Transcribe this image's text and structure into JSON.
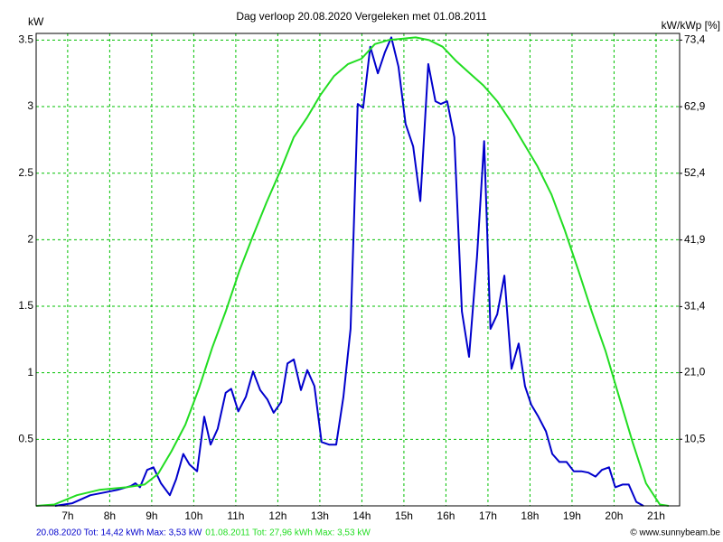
{
  "chart_data": {
    "type": "line",
    "title": "Dag  verloop 20.08.2020   Vergeleken met 01.08.2011",
    "y_label": "kW",
    "y2_label": "kW/kWp [%]",
    "credit": "© www.sunnybeam.be",
    "xlim": [
      6.25,
      21.56
    ],
    "xticks": [
      {
        "value": 7,
        "label": "7h"
      },
      {
        "value": 8,
        "label": "8h"
      },
      {
        "value": 9,
        "label": "9h"
      },
      {
        "value": 10,
        "label": "10h"
      },
      {
        "value": 11,
        "label": "11h"
      },
      {
        "value": 12,
        "label": "12h"
      },
      {
        "value": 13,
        "label": "13h"
      },
      {
        "value": 14,
        "label": "14h"
      },
      {
        "value": 15,
        "label": "15h"
      },
      {
        "value": 16,
        "label": "16h"
      },
      {
        "value": 17,
        "label": "17h"
      },
      {
        "value": 18,
        "label": "18h"
      },
      {
        "value": 19,
        "label": "19h"
      },
      {
        "value": 20,
        "label": "20h"
      },
      {
        "value": 21,
        "label": "21h"
      }
    ],
    "ylim": [
      0,
      3.55
    ],
    "yticks": [
      0.5,
      1,
      1.5,
      2,
      2.5,
      3,
      3.5
    ],
    "y2lim": [
      0,
      74.45
    ],
    "y2ticks": [
      {
        "value": 10.5,
        "label": "10,5"
      },
      {
        "value": 21.0,
        "label": "21,0"
      },
      {
        "value": 31.4,
        "label": "31,4"
      },
      {
        "value": 41.9,
        "label": "41,9"
      },
      {
        "value": 52.4,
        "label": "52,4"
      },
      {
        "value": 62.9,
        "label": "62,9"
      },
      {
        "value": 73.4,
        "label": "73,4"
      }
    ],
    "grid": true,
    "series": [
      {
        "name": "20.08.2020 Tot: 14,42 kWh Max: 3,53 kW",
        "color": "#0000cc",
        "x": [
          6.7,
          7.11,
          7.54,
          7.86,
          8.18,
          8.51,
          8.61,
          8.72,
          8.89,
          9.04,
          9.22,
          9.43,
          9.58,
          9.75,
          9.9,
          10.08,
          10.25,
          10.4,
          10.57,
          10.76,
          10.89,
          11.06,
          11.24,
          11.41,
          11.58,
          11.75,
          11.9,
          12.08,
          12.23,
          12.38,
          12.55,
          12.7,
          12.87,
          13.04,
          13.22,
          13.39,
          13.56,
          13.73,
          13.9,
          14.03,
          14.2,
          14.38,
          14.55,
          14.7,
          14.87,
          15.04,
          15.22,
          15.39,
          15.58,
          15.75,
          15.88,
          16.03,
          16.2,
          16.38,
          16.55,
          16.74,
          16.91,
          17.06,
          17.22,
          17.39,
          17.56,
          17.73,
          17.88,
          18.03,
          18.2,
          18.38,
          18.53,
          18.7,
          18.87,
          19.04,
          19.22,
          19.39,
          19.56,
          19.71,
          19.88,
          20.03,
          20.2,
          20.35,
          20.53,
          20.7
        ],
        "values": [
          0,
          0.02,
          0.08,
          0.1,
          0.12,
          0.15,
          0.17,
          0.14,
          0.27,
          0.29,
          0.17,
          0.08,
          0.2,
          0.39,
          0.31,
          0.26,
          0.67,
          0.46,
          0.58,
          0.85,
          0.88,
          0.71,
          0.82,
          1.01,
          0.87,
          0.8,
          0.7,
          0.78,
          1.07,
          1.1,
          0.87,
          1.02,
          0.9,
          0.48,
          0.46,
          0.46,
          0.82,
          1.33,
          3.02,
          2.99,
          3.45,
          3.25,
          3.41,
          3.52,
          3.3,
          2.87,
          2.7,
          2.29,
          3.32,
          3.04,
          3.02,
          3.04,
          2.77,
          1.46,
          1.12,
          1.87,
          2.74,
          1.33,
          1.44,
          1.73,
          1.03,
          1.22,
          0.9,
          0.76,
          0.67,
          0.56,
          0.39,
          0.33,
          0.33,
          0.26,
          0.26,
          0.25,
          0.22,
          0.27,
          0.29,
          0.14,
          0.16,
          0.16,
          0.03,
          0
        ]
      },
      {
        "name": "01.08.2011 Tot: 27,96 kWh Max: 3,53 kW",
        "color": "#22dd22",
        "x": [
          6.25,
          6.68,
          7.22,
          7.75,
          8.4,
          8.83,
          9.15,
          9.47,
          9.8,
          10.12,
          10.44,
          10.76,
          11.09,
          11.41,
          11.73,
          12.05,
          12.38,
          12.7,
          13.02,
          13.34,
          13.67,
          13.99,
          14.31,
          14.63,
          14.96,
          15.28,
          15.6,
          15.92,
          16.25,
          16.57,
          16.89,
          17.22,
          17.54,
          17.86,
          18.18,
          18.51,
          18.83,
          19.15,
          19.47,
          19.8,
          20.12,
          20.44,
          20.76,
          21.09,
          21.3
        ],
        "values": [
          0,
          0.01,
          0.08,
          0.12,
          0.14,
          0.16,
          0.24,
          0.41,
          0.61,
          0.88,
          1.19,
          1.46,
          1.77,
          2.03,
          2.28,
          2.51,
          2.77,
          2.92,
          3.09,
          3.23,
          3.32,
          3.36,
          3.47,
          3.5,
          3.51,
          3.52,
          3.5,
          3.45,
          3.34,
          3.25,
          3.16,
          3.04,
          2.89,
          2.72,
          2.55,
          2.34,
          2.07,
          1.77,
          1.46,
          1.16,
          0.82,
          0.48,
          0.17,
          0.01,
          0
        ]
      }
    ]
  }
}
